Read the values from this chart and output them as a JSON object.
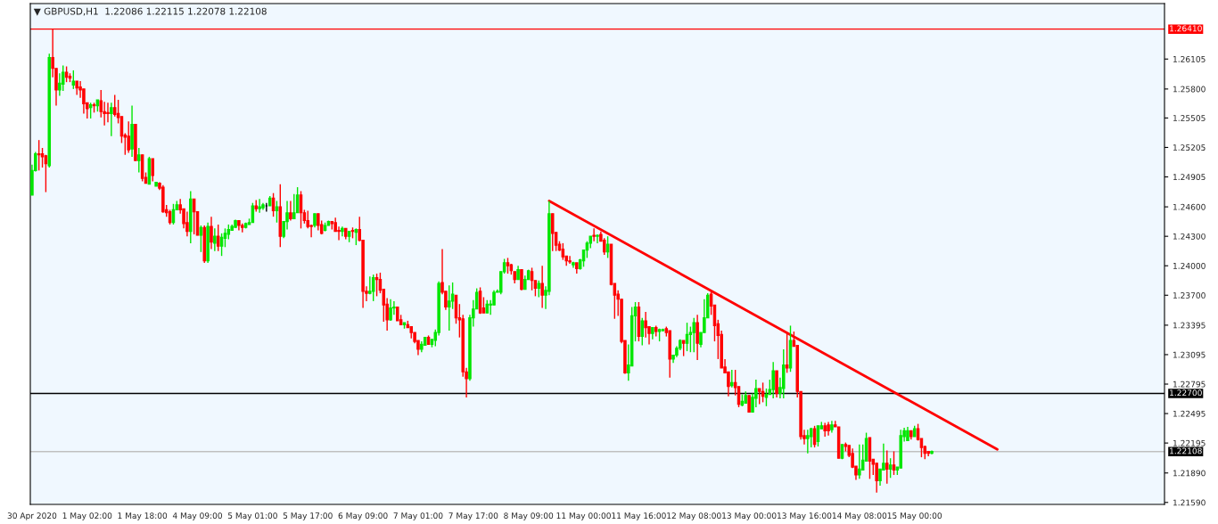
{
  "chart_data": {
    "type": "candlestick",
    "title": "▼ GBPUSD,H1  1.22086 1.22115 1.22078 1.22108",
    "categories": [
      "30 Apr 2020",
      null,
      null,
      null,
      null,
      null,
      null,
      null,
      null,
      null,
      null,
      null,
      null,
      null,
      null,
      null,
      "1 May 02:00",
      null,
      null,
      null,
      null,
      null,
      null,
      null,
      null,
      null,
      null,
      null,
      null,
      null,
      null,
      null,
      "1 May 18:00",
      null,
      null,
      null,
      null,
      null,
      null,
      null,
      null,
      null,
      null,
      null,
      null,
      null,
      null,
      null,
      "4 May 09:00",
      null,
      null,
      null,
      null,
      null,
      null,
      null,
      null,
      null,
      null,
      null,
      null,
      null,
      null,
      null,
      "5 May 01:00",
      null,
      null,
      null,
      null,
      null,
      null,
      null,
      null,
      null,
      null,
      null,
      null,
      null,
      null,
      null,
      "5 May 17:00",
      null,
      null,
      null,
      null,
      null,
      null,
      null,
      null,
      null,
      null,
      null,
      null,
      null,
      null,
      null,
      "6 May 09:00",
      null,
      null,
      null,
      null,
      null,
      null,
      null,
      null,
      null,
      null,
      null,
      null,
      null,
      null,
      null,
      "7 May 01:00",
      null,
      null,
      null,
      null,
      null,
      null,
      null,
      null,
      null,
      null,
      null,
      null,
      null,
      null,
      null,
      "7 May 17:00",
      null,
      null,
      null,
      null,
      null,
      null,
      null,
      null,
      null,
      null,
      null,
      null,
      null,
      null,
      null,
      "8 May 09:00",
      null,
      null,
      null,
      null,
      null,
      null,
      null,
      null,
      null,
      null,
      null,
      null,
      null,
      null,
      null,
      "11 May 00:00",
      null,
      null,
      null,
      null,
      null,
      null,
      null,
      null,
      null,
      null,
      null,
      null,
      null,
      null,
      null,
      "11 May 16:00",
      null,
      null,
      null,
      null,
      null,
      null,
      null,
      null,
      null,
      null,
      null,
      null,
      null,
      null,
      null,
      "12 May 08:00",
      null,
      null,
      null,
      null,
      null,
      null,
      null,
      null,
      null,
      null,
      null,
      null,
      null,
      null,
      null,
      "13 May 00:00",
      null,
      null,
      null,
      null,
      null,
      null,
      null,
      null,
      null,
      null,
      null,
      null,
      null,
      null,
      null,
      "13 May 16:00",
      null,
      null,
      null,
      null,
      null,
      null,
      null,
      null,
      null,
      null,
      null,
      null,
      null,
      null,
      null,
      "14 May 08:00",
      null,
      null,
      null,
      null,
      null,
      null,
      null,
      null,
      null,
      null,
      null,
      null,
      null,
      null,
      null,
      "15 May 00:00",
      null,
      null,
      null,
      null,
      null,
      null,
      null,
      null,
      null,
      null,
      null,
      null,
      null,
      null,
      null,
      null,
      null,
      null,
      null,
      null,
      null,
      null,
      null,
      null,
      null,
      null,
      null,
      null,
      null,
      null,
      null,
      null,
      null,
      null,
      null,
      null,
      null,
      null,
      null,
      null,
      null,
      null,
      null,
      null,
      null,
      null,
      null,
      null,
      null,
      null,
      null,
      null,
      null,
      null,
      null,
      null,
      null,
      null,
      null,
      null,
      null,
      null,
      null,
      null,
      null,
      null,
      null,
      null,
      null,
      null,
      null,
      null
    ],
    "ohlc": [
      [
        1.2472,
        1.2503,
        1.2472,
        1.2497
      ],
      [
        1.2497,
        1.2516,
        1.2496,
        1.2514
      ],
      [
        1.2514,
        1.2528,
        1.2497,
        1.2513
      ],
      [
        1.2514,
        1.252,
        1.25,
        1.2511
      ],
      [
        1.2512,
        1.2513,
        1.2475,
        1.2504
      ],
      [
        1.2502,
        1.2616,
        1.25,
        1.2612
      ],
      [
        1.2612,
        1.2641,
        1.2592,
        1.2601
      ],
      [
        1.2601,
        1.2601,
        1.2563,
        1.2579
      ],
      [
        1.2579,
        1.2596,
        1.2573,
        1.2586
      ],
      [
        1.2585,
        1.2604,
        1.2578,
        1.2597
      ],
      [
        1.2597,
        1.2603,
        1.2587,
        1.2592
      ],
      [
        1.2593,
        1.2596,
        1.2587,
        1.2591
      ],
      [
        1.2584,
        1.2599,
        1.258,
        1.2588
      ],
      [
        1.2588,
        1.2588,
        1.2574,
        1.2581
      ],
      [
        1.2582,
        1.2588,
        1.2571,
        1.2579
      ],
      [
        1.258,
        1.258,
        1.2555,
        1.2565
      ],
      [
        1.2566,
        1.2566,
        1.255,
        1.256
      ],
      [
        1.2561,
        1.2566,
        1.255,
        1.2564
      ],
      [
        1.2564,
        1.2566,
        1.2556,
        1.2563
      ],
      [
        1.2563,
        1.2569,
        1.2557,
        1.2569
      ],
      [
        1.2568,
        1.2579,
        1.2551,
        1.2557
      ],
      [
        1.2557,
        1.2567,
        1.2543,
        1.2555
      ],
      [
        1.2556,
        1.2566,
        1.2546,
        1.2555
      ],
      [
        1.2555,
        1.2566,
        1.2532,
        1.2561
      ],
      [
        1.2561,
        1.2574,
        1.2552,
        1.2554
      ],
      [
        1.2555,
        1.2569,
        1.2545,
        1.2551
      ],
      [
        1.2552,
        1.2552,
        1.2525,
        1.2532
      ],
      [
        1.2533,
        1.2535,
        1.2513,
        1.2531
      ],
      [
        1.2532,
        1.2547,
        1.2515,
        1.2518
      ],
      [
        1.2519,
        1.2563,
        1.2511,
        1.2544
      ],
      [
        1.2544,
        1.2544,
        1.2507,
        1.2507
      ],
      [
        1.2507,
        1.252,
        1.2495,
        1.2513
      ],
      [
        1.2513,
        1.2513,
        1.2486,
        1.2489
      ],
      [
        1.249,
        1.2495,
        1.2484,
        1.2484
      ],
      [
        1.2483,
        1.2511,
        1.2483,
        1.2509
      ],
      [
        1.2509,
        1.2509,
        1.2486,
        1.2492
      ],
      [
        1.2481,
        1.2485,
        1.2481,
        1.2485
      ],
      [
        1.2484,
        1.2485,
        1.2477,
        1.2479
      ],
      [
        1.248,
        1.2482,
        1.2454,
        1.2455
      ],
      [
        1.2457,
        1.2462,
        1.245,
        1.2454
      ],
      [
        1.2455,
        1.2457,
        1.2442,
        1.2444
      ],
      [
        1.2444,
        1.2463,
        1.2442,
        1.2457
      ],
      [
        1.2457,
        1.2466,
        1.2457,
        1.2462
      ],
      [
        1.2462,
        1.2468,
        1.2453,
        1.2457
      ],
      [
        1.2458,
        1.2458,
        1.2438,
        1.2443
      ],
      [
        1.2444,
        1.2455,
        1.243,
        1.2435
      ],
      [
        1.2435,
        1.2476,
        1.2423,
        1.2468
      ],
      [
        1.2468,
        1.2468,
        1.2432,
        1.2455
      ],
      [
        1.2455,
        1.2455,
        1.2431,
        1.2431
      ],
      [
        1.2431,
        1.2441,
        1.2414,
        1.2439
      ],
      [
        1.2439,
        1.2441,
        1.2403,
        1.2405
      ],
      [
        1.2405,
        1.2444,
        1.2403,
        1.244
      ],
      [
        1.244,
        1.245,
        1.2417,
        1.2424
      ],
      [
        1.2423,
        1.2438,
        1.2415,
        1.243
      ],
      [
        1.243,
        1.2442,
        1.2415,
        1.242
      ],
      [
        1.242,
        1.2433,
        1.241,
        1.2429
      ],
      [
        1.2428,
        1.2438,
        1.2419,
        1.2433
      ],
      [
        1.2432,
        1.2442,
        1.2427,
        1.2437
      ],
      [
        1.2436,
        1.2442,
        1.2436,
        1.244
      ],
      [
        1.2439,
        1.2447,
        1.2439,
        1.2446
      ],
      [
        1.2446,
        1.2446,
        1.2436,
        1.2441
      ],
      [
        1.2441,
        1.2443,
        1.2434,
        1.2439
      ],
      [
        1.2439,
        1.2444,
        1.2438,
        1.2443
      ],
      [
        1.2442,
        1.2448,
        1.2442,
        1.2444
      ],
      [
        1.2444,
        1.2464,
        1.2444,
        1.2461
      ],
      [
        1.2461,
        1.2467,
        1.2455,
        1.2458
      ],
      [
        1.2458,
        1.2468,
        1.2454,
        1.246
      ],
      [
        1.2459,
        1.2464,
        1.2457,
        1.2462
      ],
      [
        1.2461,
        1.2464,
        1.2455,
        1.2461
      ],
      [
        1.2461,
        1.2471,
        1.2461,
        1.2469
      ],
      [
        1.2469,
        1.2474,
        1.245,
        1.2456
      ],
      [
        1.2456,
        1.2466,
        1.2444,
        1.246
      ],
      [
        1.246,
        1.2483,
        1.2419,
        1.243
      ],
      [
        1.243,
        1.2445,
        1.2428,
        1.2445
      ],
      [
        1.2445,
        1.2466,
        1.2437,
        1.2454
      ],
      [
        1.2454,
        1.2466,
        1.2446,
        1.2448
      ],
      [
        1.2448,
        1.2473,
        1.2448,
        1.2454
      ],
      [
        1.2454,
        1.248,
        1.2454,
        1.2472
      ],
      [
        1.2472,
        1.2476,
        1.2438,
        1.2454
      ],
      [
        1.2454,
        1.2457,
        1.2443,
        1.2446
      ],
      [
        1.2446,
        1.2456,
        1.2438,
        1.244
      ],
      [
        1.2441,
        1.2442,
        1.2429,
        1.244
      ],
      [
        1.2441,
        1.2453,
        1.2439,
        1.2453
      ],
      [
        1.2453,
        1.2453,
        1.2436,
        1.2441
      ],
      [
        1.2442,
        1.2446,
        1.2432,
        1.2433
      ],
      [
        1.2436,
        1.2444,
        1.2435,
        1.2441
      ],
      [
        1.2441,
        1.2446,
        1.2441,
        1.2445
      ],
      [
        1.2445,
        1.2445,
        1.2437,
        1.2443
      ],
      [
        1.2444,
        1.2449,
        1.2435,
        1.2435
      ],
      [
        1.2436,
        1.244,
        1.2426,
        1.2435
      ],
      [
        1.2435,
        1.244,
        1.243,
        1.2438
      ],
      [
        1.2438,
        1.2438,
        1.2427,
        1.243
      ],
      [
        1.243,
        1.2435,
        1.2424,
        1.2435
      ],
      [
        1.2436,
        1.2439,
        1.2428,
        1.2435
      ],
      [
        1.2434,
        1.2438,
        1.2421,
        1.2437
      ],
      [
        1.2437,
        1.245,
        1.2425,
        1.2426
      ],
      [
        1.2426,
        1.2426,
        1.2357,
        1.2374
      ],
      [
        1.2374,
        1.2379,
        1.2364,
        1.2372
      ],
      [
        1.2372,
        1.2389,
        1.2371,
        1.2374
      ],
      [
        1.2374,
        1.2391,
        1.2364,
        1.2388
      ],
      [
        1.2388,
        1.2392,
        1.2369,
        1.2386
      ],
      [
        1.2386,
        1.2393,
        1.2372,
        1.2375
      ],
      [
        1.2376,
        1.2376,
        1.2343,
        1.236
      ],
      [
        1.2361,
        1.2367,
        1.2334,
        1.2345
      ],
      [
        1.2345,
        1.2366,
        1.2344,
        1.2357
      ],
      [
        1.2357,
        1.2364,
        1.235,
        1.2358
      ],
      [
        1.2358,
        1.2358,
        1.2344,
        1.2344
      ],
      [
        1.2345,
        1.235,
        1.234,
        1.234
      ],
      [
        1.234,
        1.2342,
        1.2336,
        1.2342
      ],
      [
        1.234,
        1.2344,
        1.2337,
        1.2337
      ],
      [
        1.2338,
        1.2338,
        1.2326,
        1.2332
      ],
      [
        1.2332,
        1.2332,
        1.2321,
        1.2323
      ],
      [
        1.2324,
        1.2324,
        1.2309,
        1.2315
      ],
      [
        1.2315,
        1.2323,
        1.2312,
        1.232
      ],
      [
        1.2319,
        1.2327,
        1.2319,
        1.2327
      ],
      [
        1.2327,
        1.2329,
        1.232,
        1.232
      ],
      [
        1.232,
        1.2325,
        1.2317,
        1.2325
      ],
      [
        1.2324,
        1.2335,
        1.2318,
        1.2332
      ],
      [
        1.2332,
        1.2384,
        1.2329,
        1.2382
      ],
      [
        1.2383,
        1.2417,
        1.2371,
        1.2373
      ],
      [
        1.2374,
        1.2374,
        1.2355,
        1.2358
      ],
      [
        1.2358,
        1.238,
        1.2334,
        1.2364
      ],
      [
        1.2364,
        1.2383,
        1.2356,
        1.2371
      ],
      [
        1.237,
        1.237,
        1.2341,
        1.2347
      ],
      [
        1.2347,
        1.2361,
        1.2327,
        1.2345
      ],
      [
        1.2346,
        1.235,
        1.2287,
        1.2292
      ],
      [
        1.2292,
        1.2296,
        1.2266,
        1.2285
      ],
      [
        1.2285,
        1.235,
        1.2283,
        1.2347
      ],
      [
        1.2347,
        1.2365,
        1.2338,
        1.2356
      ],
      [
        1.2356,
        1.2377,
        1.2356,
        1.2373
      ],
      [
        1.2374,
        1.2378,
        1.2351,
        1.2352
      ],
      [
        1.2357,
        1.2368,
        1.2352,
        1.2352
      ],
      [
        1.2352,
        1.2365,
        1.2352,
        1.2361
      ],
      [
        1.236,
        1.2365,
        1.235,
        1.2361
      ],
      [
        1.236,
        1.2375,
        1.236,
        1.2373
      ],
      [
        1.2373,
        1.2376,
        1.2373,
        1.2374
      ],
      [
        1.2373,
        1.2394,
        1.2371,
        1.2394
      ],
      [
        1.2394,
        1.2407,
        1.2392,
        1.2403
      ],
      [
        1.2403,
        1.2408,
        1.2392,
        1.24
      ],
      [
        1.2401,
        1.2402,
        1.2391,
        1.2395
      ],
      [
        1.2394,
        1.2394,
        1.2382,
        1.2386
      ],
      [
        1.2386,
        1.24,
        1.2386,
        1.2396
      ],
      [
        1.2396,
        1.2396,
        1.2375,
        1.2376
      ],
      [
        1.2376,
        1.239,
        1.2376,
        1.2386
      ],
      [
        1.2386,
        1.2396,
        1.2386,
        1.2395
      ],
      [
        1.2394,
        1.2398,
        1.2375,
        1.2385
      ],
      [
        1.2385,
        1.2385,
        1.2369,
        1.2377
      ],
      [
        1.2377,
        1.2385,
        1.2368,
        1.2382
      ],
      [
        1.2382,
        1.24,
        1.2357,
        1.237
      ],
      [
        1.237,
        1.2379,
        1.2356,
        1.2375
      ],
      [
        1.2374,
        1.2466,
        1.237,
        1.2453
      ],
      [
        1.2453,
        1.2453,
        1.2415,
        1.2433
      ],
      [
        1.2434,
        1.2434,
        1.2415,
        1.2421
      ],
      [
        1.2422,
        1.2425,
        1.2415,
        1.2416
      ],
      [
        1.2417,
        1.2423,
        1.2406,
        1.2409
      ],
      [
        1.241,
        1.241,
        1.24,
        1.2405
      ],
      [
        1.2405,
        1.241,
        1.2402,
        1.2404
      ],
      [
        1.2401,
        1.2404,
        1.2398,
        1.2403
      ],
      [
        1.2403,
        1.2403,
        1.2392,
        1.2397
      ],
      [
        1.2397,
        1.2407,
        1.2396,
        1.2406
      ],
      [
        1.2405,
        1.2416,
        1.2399,
        1.2416
      ],
      [
        1.2416,
        1.2425,
        1.2408,
        1.2423
      ],
      [
        1.2423,
        1.243,
        1.2418,
        1.243
      ],
      [
        1.2431,
        1.2438,
        1.2425,
        1.243
      ],
      [
        1.243,
        1.2432,
        1.2423,
        1.2431
      ],
      [
        1.2432,
        1.2435,
        1.2425,
        1.2425
      ],
      [
        1.2426,
        1.2428,
        1.2411,
        1.2414
      ],
      [
        1.2414,
        1.243,
        1.2408,
        1.2422
      ],
      [
        1.2422,
        1.2422,
        1.238,
        1.2381
      ],
      [
        1.2382,
        1.2382,
        1.2346,
        1.237
      ],
      [
        1.2371,
        1.2375,
        1.2349,
        1.2366
      ],
      [
        1.2366,
        1.2366,
        1.2321,
        1.2323
      ],
      [
        1.2324,
        1.2324,
        1.229,
        1.2291
      ],
      [
        1.2291,
        1.232,
        1.2283,
        1.2299
      ],
      [
        1.2298,
        1.2358,
        1.2298,
        1.2349
      ],
      [
        1.2349,
        1.2363,
        1.2323,
        1.2358
      ],
      [
        1.2358,
        1.2363,
        1.2323,
        1.2328
      ],
      [
        1.2328,
        1.2347,
        1.2319,
        1.2344
      ],
      [
        1.2344,
        1.2353,
        1.2327,
        1.2337
      ],
      [
        1.2338,
        1.2338,
        1.232,
        1.2331
      ],
      [
        1.2331,
        1.2337,
        1.2325,
        1.2337
      ],
      [
        1.2337,
        1.2339,
        1.2328,
        1.2333
      ],
      [
        1.2333,
        1.2336,
        1.2323,
        1.2335
      ],
      [
        1.2334,
        1.2336,
        1.2333,
        1.2335
      ],
      [
        1.2336,
        1.2338,
        1.2328,
        1.2332
      ],
      [
        1.2334,
        1.2334,
        1.2286,
        1.2305
      ],
      [
        1.2305,
        1.2309,
        1.2301,
        1.2309
      ],
      [
        1.2309,
        1.2318,
        1.2307,
        1.2316
      ],
      [
        1.2316,
        1.2325,
        1.2314,
        1.2324
      ],
      [
        1.2324,
        1.2324,
        1.2308,
        1.2321
      ],
      [
        1.2321,
        1.2342,
        1.2313,
        1.233
      ],
      [
        1.233,
        1.2338,
        1.2312,
        1.2332
      ],
      [
        1.2332,
        1.2347,
        1.2312,
        1.2342
      ],
      [
        1.2342,
        1.235,
        1.2304,
        1.2321
      ],
      [
        1.232,
        1.2332,
        1.2317,
        1.2332
      ],
      [
        1.2332,
        1.2366,
        1.2332,
        1.2347
      ],
      [
        1.2347,
        1.2372,
        1.2347,
        1.237
      ],
      [
        1.2371,
        1.2375,
        1.235,
        1.2359
      ],
      [
        1.236,
        1.236,
        1.2323,
        1.2339
      ],
      [
        1.2341,
        1.2345,
        1.2305,
        1.2329
      ],
      [
        1.233,
        1.2334,
        1.2296,
        1.2296
      ],
      [
        1.2297,
        1.2305,
        1.2291,
        1.2291
      ],
      [
        1.2292,
        1.2292,
        1.2267,
        1.2277
      ],
      [
        1.2278,
        1.2294,
        1.2276,
        1.2281
      ],
      [
        1.2281,
        1.2294,
        1.2268,
        1.2276
      ],
      [
        1.2277,
        1.2277,
        1.2256,
        1.2259
      ],
      [
        1.2258,
        1.2269,
        1.2257,
        1.2262
      ],
      [
        1.226,
        1.2272,
        1.226,
        1.2268
      ],
      [
        1.2268,
        1.2268,
        1.2251,
        1.2251
      ],
      [
        1.2251,
        1.227,
        1.2251,
        1.2266
      ],
      [
        1.2265,
        1.2284,
        1.2256,
        1.2275
      ],
      [
        1.2275,
        1.2275,
        1.2259,
        1.2272
      ],
      [
        1.2272,
        1.2281,
        1.2261,
        1.2267
      ],
      [
        1.2266,
        1.2275,
        1.2257,
        1.2269
      ],
      [
        1.2269,
        1.2284,
        1.2269,
        1.2274
      ],
      [
        1.2274,
        1.2302,
        1.2265,
        1.2293
      ],
      [
        1.2293,
        1.2293,
        1.2266,
        1.227
      ],
      [
        1.227,
        1.2286,
        1.2265,
        1.2276
      ],
      [
        1.2275,
        1.2315,
        1.2265,
        1.2299
      ],
      [
        1.2299,
        1.2332,
        1.2291,
        1.2296
      ],
      [
        1.2296,
        1.2339,
        1.2292,
        1.2324
      ],
      [
        1.2324,
        1.2333,
        1.2318,
        1.2318
      ],
      [
        1.2319,
        1.2319,
        1.2266,
        1.2272
      ],
      [
        1.2272,
        1.2272,
        1.2223,
        1.2226
      ],
      [
        1.2227,
        1.2233,
        1.2218,
        1.2224
      ],
      [
        1.2224,
        1.2233,
        1.2209,
        1.2227
      ],
      [
        1.2226,
        1.2235,
        1.2215,
        1.2234
      ],
      [
        1.2234,
        1.2237,
        1.2215,
        1.2218
      ],
      [
        1.2221,
        1.2237,
        1.2216,
        1.2237
      ],
      [
        1.2234,
        1.2241,
        1.2234,
        1.2237
      ],
      [
        1.2237,
        1.224,
        1.2226,
        1.2232
      ],
      [
        1.2238,
        1.2241,
        1.2227,
        1.2232
      ],
      [
        1.2233,
        1.2242,
        1.223,
        1.2238
      ],
      [
        1.2238,
        1.2242,
        1.2236,
        1.2236
      ],
      [
        1.2236,
        1.2236,
        1.2204,
        1.2204
      ],
      [
        1.2204,
        1.2218,
        1.2203,
        1.2218
      ],
      [
        1.2218,
        1.222,
        1.2211,
        1.2216
      ],
      [
        1.2217,
        1.2217,
        1.2205,
        1.2207
      ],
      [
        1.2209,
        1.2214,
        1.2194,
        1.2195
      ],
      [
        1.2196,
        1.2196,
        1.2182,
        1.2187
      ],
      [
        1.2187,
        1.2218,
        1.2183,
        1.2193
      ],
      [
        1.2192,
        1.2218,
        1.2192,
        1.2202
      ],
      [
        1.2201,
        1.223,
        1.2201,
        1.2224
      ],
      [
        1.2225,
        1.2225,
        1.2183,
        1.2201
      ],
      [
        1.2203,
        1.2203,
        1.2187,
        1.2198
      ],
      [
        1.2199,
        1.2199,
        1.2169,
        1.2181
      ],
      [
        1.2181,
        1.2193,
        1.2176,
        1.2193
      ],
      [
        1.2192,
        1.2219,
        1.2192,
        1.2199
      ],
      [
        1.2199,
        1.2212,
        1.2178,
        1.2193
      ],
      [
        1.2193,
        1.2204,
        1.2184,
        1.2197
      ],
      [
        1.2197,
        1.2211,
        1.2187,
        1.2192
      ],
      [
        1.2192,
        1.2195,
        1.2187,
        1.2195
      ],
      [
        1.2194,
        1.2233,
        1.2194,
        1.2227
      ],
      [
        1.2226,
        1.2235,
        1.2221,
        1.2232
      ],
      [
        1.2222,
        1.2236,
        1.2222,
        1.2232
      ],
      [
        1.2232,
        1.2232,
        1.2223,
        1.2226
      ],
      [
        1.2226,
        1.2237,
        1.2226,
        1.2234
      ],
      [
        1.2234,
        1.2239,
        1.2222,
        1.2223
      ],
      [
        1.2224,
        1.2224,
        1.2205,
        1.2215
      ],
      [
        1.2216,
        1.2217,
        1.2203,
        1.2209
      ],
      [
        1.2211,
        1.2211,
        1.2206,
        1.2209
      ],
      [
        1.2209,
        1.2212,
        1.2208,
        1.2211
      ],
      null,
      null,
      null,
      null,
      null,
      null,
      null,
      null,
      null,
      null,
      null,
      null,
      null,
      null,
      null,
      null,
      null,
      null,
      null,
      null,
      null,
      null,
      null,
      null,
      null,
      null,
      null,
      null,
      null,
      null,
      null,
      null,
      null,
      null,
      null,
      null,
      null,
      null,
      null,
      null,
      null,
      null,
      null,
      null,
      null,
      null,
      null,
      null,
      null,
      null,
      null,
      null,
      null,
      null,
      null,
      null,
      null,
      null,
      null,
      null,
      null,
      null,
      null,
      null,
      null,
      null,
      null
    ],
    "series": [
      {
        "type": "line",
        "color": "#ff0000",
        "values": [
          null,
          null,
          null,
          null,
          null,
          null,
          null,
          null,
          null,
          null,
          null,
          null,
          null,
          null,
          null,
          null,
          null,
          null,
          null,
          null,
          null,
          null,
          null,
          null,
          null,
          null,
          null,
          null,
          null,
          null,
          null,
          null,
          null,
          null,
          null,
          null,
          null,
          null,
          null,
          null,
          null,
          null,
          null,
          null,
          null,
          null,
          null,
          null,
          null,
          null,
          null,
          null,
          null,
          null,
          null,
          null,
          null,
          null,
          null,
          null,
          null,
          null,
          null,
          null,
          null,
          null,
          null,
          null,
          null,
          null,
          null,
          null,
          null,
          null,
          null,
          null,
          null,
          null,
          null,
          null,
          null,
          null,
          null,
          null,
          null,
          null,
          null,
          null,
          null,
          null,
          null,
          null,
          null,
          null,
          null,
          null,
          null,
          null,
          null,
          null,
          null,
          null,
          null,
          null,
          null,
          null,
          null,
          null,
          null,
          null,
          null,
          null,
          null,
          null,
          null,
          null,
          null,
          null,
          null,
          null,
          null,
          null,
          null,
          null,
          null,
          null,
          null,
          null,
          null,
          null,
          null,
          null,
          null,
          null,
          null,
          null,
          null,
          null,
          null,
          null,
          null,
          null,
          null,
          null,
          null,
          null,
          null,
          null,
          null,
          null,
          1.2466,
          null,
          null,
          null,
          null,
          null,
          null,
          null,
          null,
          null,
          null,
          null,
          null,
          null,
          null,
          null,
          null,
          null,
          null,
          null,
          null,
          null,
          null,
          null,
          null,
          null,
          null,
          null,
          null,
          null,
          null,
          null,
          null,
          null,
          null,
          null,
          null,
          null,
          null,
          null,
          null,
          null,
          null,
          null,
          null,
          null,
          null,
          null,
          null,
          null,
          null,
          null,
          null,
          null,
          null,
          null,
          null,
          null,
          null,
          null,
          null,
          null,
          null,
          null,
          null,
          null,
          null,
          null,
          null,
          null,
          null,
          null,
          null,
          null,
          null,
          null,
          null,
          null,
          null,
          null,
          null,
          null,
          null,
          null,
          null,
          null,
          null,
          null,
          null,
          null,
          null,
          null,
          null,
          null,
          null,
          null,
          null,
          null,
          null,
          null,
          null,
          null,
          null,
          null,
          null,
          null,
          null,
          null,
          null,
          null,
          null,
          null,
          null,
          null,
          null,
          null,
          null,
          null,
          null,
          null,
          null,
          null,
          null,
          null,
          null,
          null,
          null,
          null,
          null,
          null,
          1.2213,
          null,
          null,
          null,
          null,
          null,
          null,
          null,
          null,
          null,
          null,
          null,
          null,
          null,
          null,
          null,
          null,
          null,
          null,
          null,
          null,
          null,
          null,
          null,
          null,
          null,
          null,
          null,
          null,
          null,
          null,
          null,
          null,
          null,
          null,
          null,
          null,
          null,
          null,
          null,
          null,
          null,
          null,
          null,
          null,
          null,
          null,
          null,
          null
        ]
      }
    ],
    "ylim": [
      1.2157,
      1.2667
    ],
    "yticks": [
      {
        "value": 1.26105,
        "label": "1.26105"
      },
      {
        "value": 1.258,
        "label": "1.25800"
      },
      {
        "value": 1.25505,
        "label": "1.25505"
      },
      {
        "value": 1.25205,
        "label": "1.25205"
      },
      {
        "value": 1.24905,
        "label": "1.24905"
      },
      {
        "value": 1.246,
        "label": "1.24600"
      },
      {
        "value": 1.243,
        "label": "1.24300"
      },
      {
        "value": 1.24,
        "label": "1.24000"
      },
      {
        "value": 1.237,
        "label": "1.23700"
      },
      {
        "value": 1.23395,
        "label": "1.23395"
      },
      {
        "value": 1.23095,
        "label": "1.23095"
      },
      {
        "value": 1.22795,
        "label": "1.22795"
      },
      {
        "value": 1.22495,
        "label": "1.22495"
      },
      {
        "value": 1.22195,
        "label": "1.22195"
      },
      {
        "value": 1.2189,
        "label": "1.21890"
      },
      {
        "value": 1.2159,
        "label": "1.21590"
      }
    ],
    "ref_lines": [
      {
        "axis": "y",
        "value": 1.2641,
        "label": "1.26410",
        "color": "#ff0000"
      },
      {
        "axis": "y",
        "value": 1.227,
        "label": "1.22700",
        "color": "#000000"
      },
      {
        "axis": "y",
        "value": 1.22108,
        "label": "1.22108",
        "color": "#c0c0c0"
      }
    ],
    "grid": false,
    "legend": false
  }
}
